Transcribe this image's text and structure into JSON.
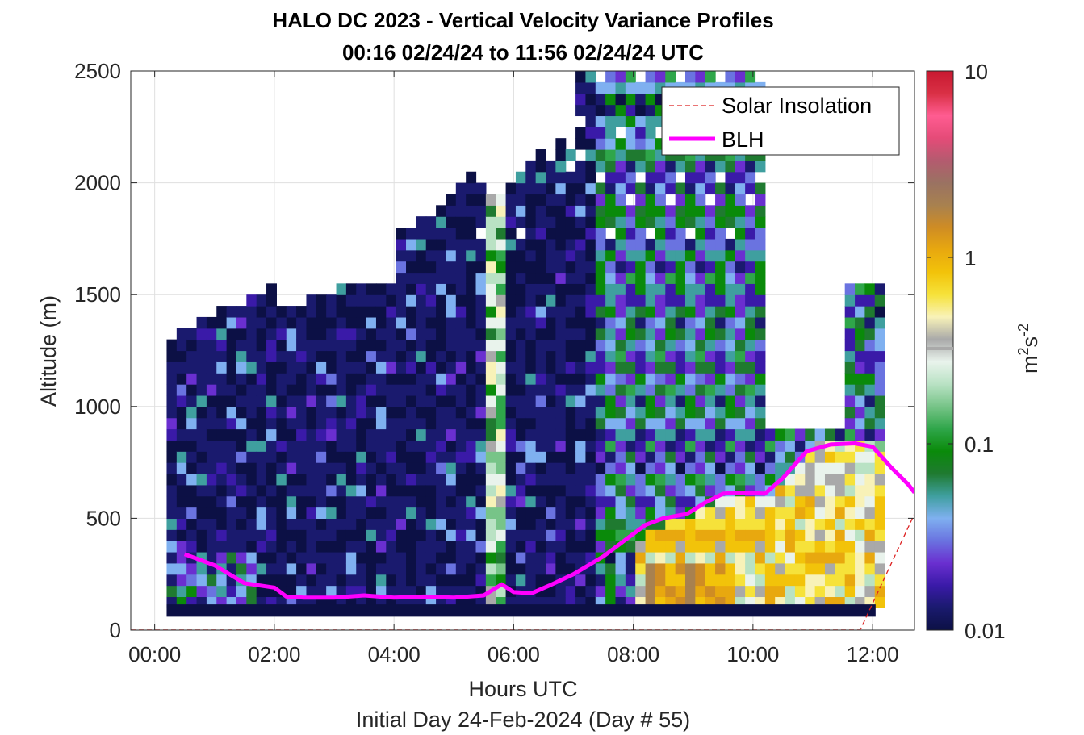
{
  "chart_data": {
    "type": "heatmap",
    "title_line1": "HALO DC 2023 - Vertical Velocity Variance Profiles",
    "title_line2": "00:16 02/24/24 to 11:56 02/24/24  UTC",
    "xlabel": "Hours UTC",
    "xlabel2": "Initial Day 24-Feb-2024 (Day # 55)",
    "ylabel": "Altitude (m)",
    "xlim_hours": [
      -0.4,
      12.7
    ],
    "ylim": [
      0,
      2500
    ],
    "x_ticks": [
      {
        "value": 0,
        "label": "00:00"
      },
      {
        "value": 2,
        "label": "02:00"
      },
      {
        "value": 4,
        "label": "04:00"
      },
      {
        "value": 6,
        "label": "06:00"
      },
      {
        "value": 8,
        "label": "08:00"
      },
      {
        "value": 10,
        "label": "10:00"
      },
      {
        "value": 12,
        "label": "12:00"
      }
    ],
    "y_ticks": [
      {
        "value": 0,
        "label": "0"
      },
      {
        "value": 500,
        "label": "500"
      },
      {
        "value": 1000,
        "label": "1000"
      },
      {
        "value": 1500,
        "label": "1500"
      },
      {
        "value": 2000,
        "label": "2000"
      },
      {
        "value": 2500,
        "label": "2500"
      }
    ],
    "grid": true,
    "legend": {
      "placement": "top-right",
      "entries": [
        {
          "label": "Solar Insolation",
          "color": "#dd2222",
          "style": "dashed"
        },
        {
          "label": "BLH",
          "color": "#ff00ff",
          "style": "solid"
        }
      ]
    },
    "colorbar": {
      "label_base": "m",
      "label_exp1": "2",
      "label_mid": "s",
      "label_exp2": "-2",
      "scale": "log",
      "range": [
        0.01,
        10
      ],
      "ticks": [
        {
          "value": 0.01,
          "label": "0.01"
        },
        {
          "value": 0.1,
          "label": "0.1"
        },
        {
          "value": 1,
          "label": "1"
        },
        {
          "value": 10,
          "label": "10"
        }
      ],
      "colors": [
        "#0c1045",
        "#1a1a6e",
        "#3a1aa8",
        "#6a2fd0",
        "#6a73e0",
        "#7fb0f0",
        "#3f9f9f",
        "#1f7a30",
        "#0a8a0a",
        "#2fa64a",
        "#77c488",
        "#b9e2c4",
        "#e9f3ec",
        "#a9a9a9",
        "#f8f2b8",
        "#f6e23a",
        "#f2c30a",
        "#e8a80f",
        "#cf8c24",
        "#a8814f",
        "#9a7262",
        "#b45b6f",
        "#e54b78",
        "#ff5c91",
        "#d93045",
        "#c81830"
      ]
    },
    "heatmap": {
      "time_step_hours": 0.1667,
      "altitude_step_m": 50,
      "cell_start_hours": 0.2,
      "cell_end_hours": 12.05,
      "bottom_m": 100,
      "low_value_top_m": 1280,
      "value_range": [
        0.01,
        5
      ]
    },
    "blh_series": {
      "name": "BLH",
      "x_hours": [
        0.5,
        1.0,
        1.5,
        2.0,
        2.2,
        2.5,
        3.0,
        3.5,
        4.0,
        4.5,
        5.0,
        5.5,
        5.8,
        6.0,
        6.3,
        6.6,
        7.0,
        7.5,
        7.9,
        8.2,
        8.5,
        8.9,
        9.2,
        9.5,
        9.8,
        10.2,
        10.5,
        10.9,
        11.3,
        11.7,
        12.0,
        12.3,
        12.6,
        12.7
      ],
      "y_m": [
        340,
        290,
        210,
        190,
        150,
        145,
        145,
        155,
        145,
        150,
        145,
        155,
        205,
        170,
        165,
        200,
        250,
        330,
        410,
        470,
        500,
        520,
        570,
        610,
        615,
        610,
        680,
        800,
        830,
        835,
        820,
        730,
        650,
        615
      ]
    },
    "solar_insolation_series": {
      "name": "Solar Insolation",
      "x_hours": [
        -0.4,
        11.8,
        12.7
      ],
      "y_m": [
        5,
        5,
        520
      ]
    }
  }
}
